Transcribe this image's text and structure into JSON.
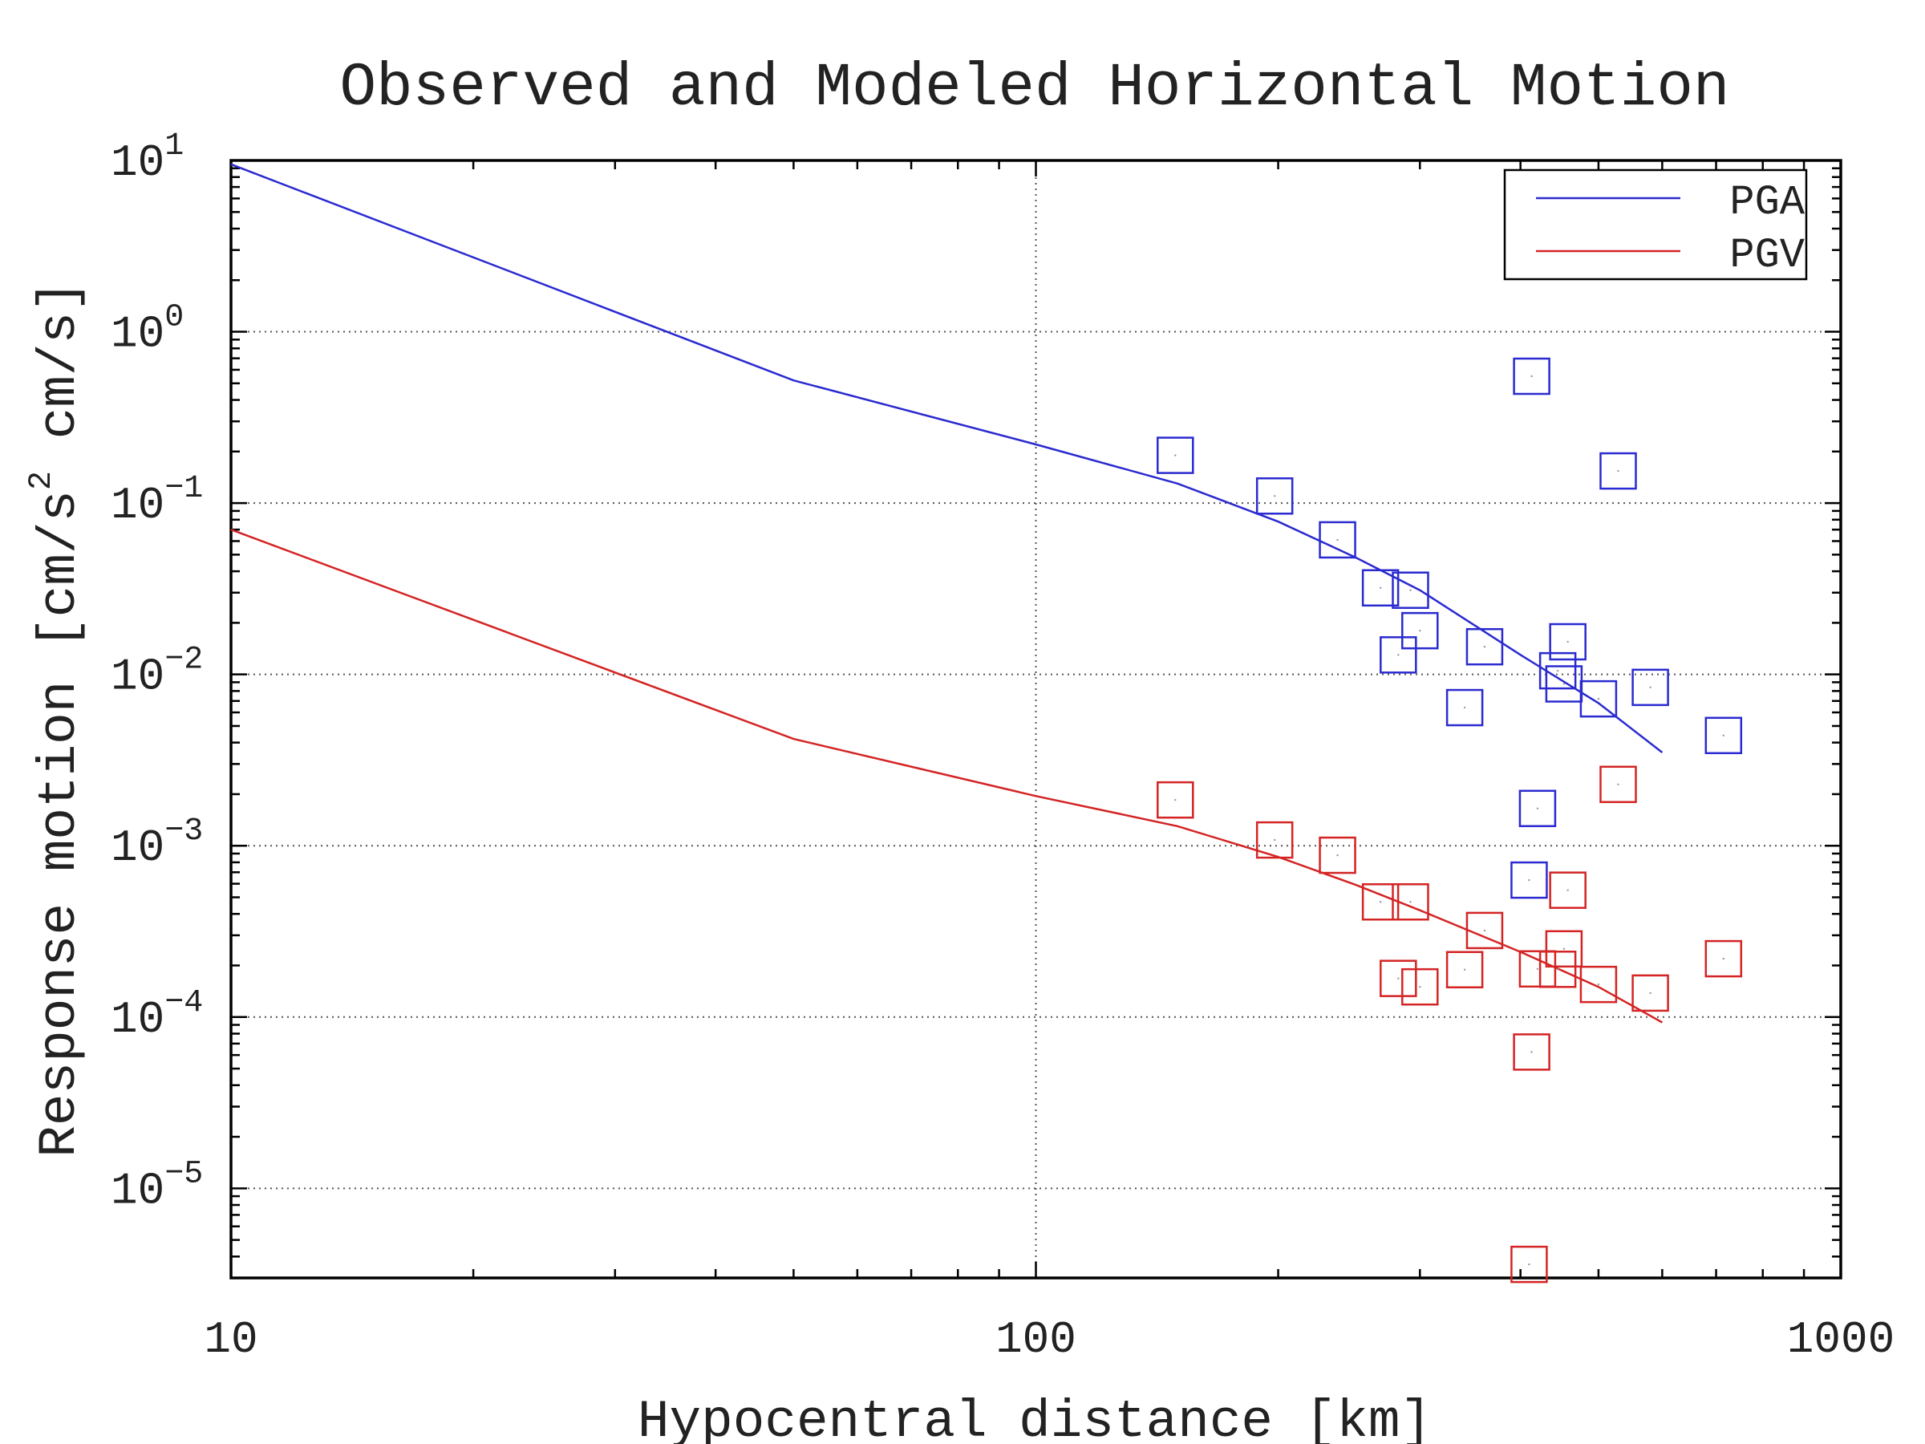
{
  "chart_data": {
    "type": "scatter",
    "title": "Observed and Modeled Horizontal Motion",
    "xlabel": "Hypocentral distance [km]",
    "ylabel": {
      "before_sup": "Response motion [cm/s",
      "sup": "2",
      "after_sup": " cm/s]"
    },
    "x_scale": "log",
    "y_scale": "log",
    "xlim": [
      10,
      1000
    ],
    "ylim": [
      3e-06,
      10
    ],
    "grid": true,
    "legend_position": "top-right",
    "x_ticks": [
      {
        "value": 10,
        "label": "10"
      },
      {
        "value": 100,
        "label": "100"
      },
      {
        "value": 1000,
        "label": "1000"
      }
    ],
    "y_ticks": [
      {
        "value": 10,
        "base": "10",
        "exp": "1"
      },
      {
        "value": 1,
        "base": "10",
        "exp": "0"
      },
      {
        "value": 0.1,
        "base": "10",
        "exp": "−1"
      },
      {
        "value": 0.01,
        "base": "10",
        "exp": "−2"
      },
      {
        "value": 0.001,
        "base": "10",
        "exp": "−3"
      },
      {
        "value": 0.0001,
        "base": "10",
        "exp": "−4"
      },
      {
        "value": 1e-05,
        "base": "10",
        "exp": "−5"
      }
    ],
    "series": [
      {
        "name": "PGA",
        "color": "#2a2ad0",
        "model": {
          "x": [
            10,
            50,
            100,
            150,
            200,
            250,
            300,
            400,
            500,
            600
          ],
          "y": [
            9.5,
            0.52,
            0.22,
            0.13,
            0.078,
            0.048,
            0.031,
            0.013,
            0.0068,
            0.0035
          ]
        },
        "observed": {
          "x": [
            149,
            198,
            237,
            268,
            282,
            292,
            300,
            341,
            361,
            410,
            413,
            420,
            445,
            453,
            458,
            500,
            529,
            580,
            715
          ],
          "y": [
            0.19,
            0.11,
            0.061,
            0.032,
            0.013,
            0.031,
            0.018,
            0.0064,
            0.0145,
            0.00063,
            0.55,
            0.00165,
            0.0105,
            0.0088,
            0.0155,
            0.0072,
            0.154,
            0.0084,
            0.0044
          ]
        }
      },
      {
        "name": "PGV",
        "color": "#d42424",
        "model": {
          "x": [
            10,
            50,
            100,
            150,
            200,
            250,
            300,
            400,
            500,
            600
          ],
          "y": [
            0.07,
            0.0042,
            0.00195,
            0.0013,
            0.00086,
            0.00059,
            0.00042,
            0.00024,
            0.00015,
            9.3e-05
          ]
        },
        "observed": {
          "x": [
            149,
            198,
            237,
            268,
            282,
            292,
            300,
            341,
            361,
            410,
            413,
            420,
            445,
            453,
            458,
            500,
            529,
            580,
            715
          ],
          "y": [
            0.00185,
            0.00108,
            0.00088,
            0.00047,
            0.000168,
            0.00047,
            0.00015,
            0.000189,
            0.00032,
            3.6e-06,
            6.25e-05,
            0.000191,
            0.00019,
            0.00025,
            0.00055,
            0.000155,
            0.00228,
            0.000138,
            0.000219
          ]
        }
      }
    ]
  }
}
